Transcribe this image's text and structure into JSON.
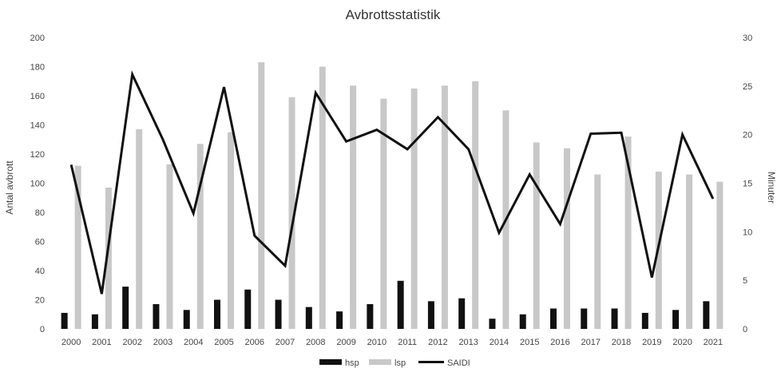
{
  "chart_data": {
    "type": "bar",
    "title": "Avbrottsstatistik",
    "ylabel": "Antal avbrott",
    "y2label": "Minuter",
    "xlabel": "",
    "ylim": [
      0,
      200
    ],
    "y2lim": [
      0,
      30
    ],
    "yticks": [
      "0",
      "20",
      "40",
      "60",
      "80",
      "100",
      "120",
      "140",
      "160",
      "180",
      "200"
    ],
    "y2ticks": [
      "0",
      "5",
      "10",
      "15",
      "20",
      "25",
      "30"
    ],
    "categories": [
      "2000",
      "2001",
      "2002",
      "2003",
      "2004",
      "2005",
      "2006",
      "2007",
      "2008",
      "2009",
      "2010",
      "2011",
      "2012",
      "2013",
      "2014",
      "2015",
      "2016",
      "2017",
      "2018",
      "2019",
      "2020",
      "2021"
    ],
    "series": [
      {
        "name": "hsp",
        "type": "bar",
        "axis": "left",
        "color": "#111111",
        "values": [
          11,
          10,
          29,
          17,
          13,
          20,
          27,
          20,
          15,
          12,
          17,
          33,
          19,
          21,
          7,
          10,
          14,
          14,
          14,
          11,
          13,
          19
        ]
      },
      {
        "name": "lsp",
        "type": "bar",
        "axis": "left",
        "color": "#c8c8c8",
        "values": [
          112,
          97,
          137,
          113,
          127,
          135,
          183,
          159,
          180,
          167,
          158,
          165,
          167,
          170,
          150,
          128,
          124,
          106,
          132,
          108,
          106,
          101
        ]
      },
      {
        "name": "SAIDI",
        "type": "line",
        "axis": "right",
        "color": "#111111",
        "values": [
          16.9,
          3.6,
          26.2,
          19.5,
          11.9,
          24.9,
          9.6,
          6.5,
          24.3,
          19.3,
          20.5,
          18.5,
          21.8,
          18.5,
          9.9,
          15.9,
          10.8,
          20.1,
          20.2,
          5.3,
          20.0,
          13.4
        ]
      }
    ],
    "legend": {
      "position": "bottom",
      "entries": [
        "hsp",
        "lsp",
        "SAIDI"
      ]
    },
    "grid": false
  }
}
